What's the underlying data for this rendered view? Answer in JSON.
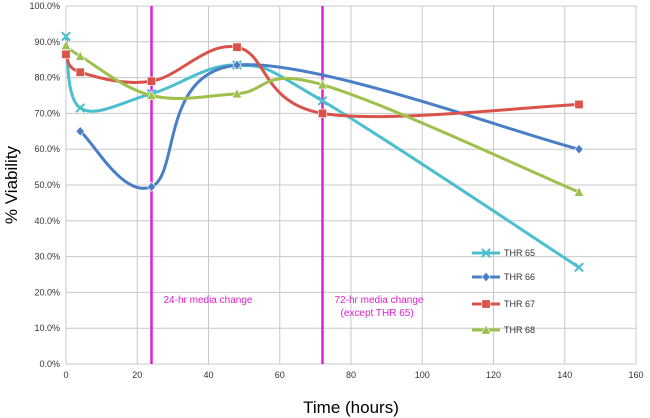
{
  "chart_data": {
    "type": "line",
    "xlabel": "Time (hours)",
    "ylabel": "% Viability",
    "xlim": [
      0,
      160
    ],
    "ylim": [
      0,
      100
    ],
    "x_ticks": [
      "0",
      "20",
      "40",
      "60",
      "80",
      "100",
      "120",
      "140",
      "160"
    ],
    "y_ticks": [
      "0.0%",
      "10.0%",
      "20.0%",
      "30.0%",
      "40.0%",
      "50.0%",
      "60.0%",
      "70.0%",
      "80.0%",
      "90.0%",
      "100.0%"
    ],
    "grid": true,
    "legend_position": "bottom-right",
    "series": [
      {
        "name": "THR 65",
        "color": "#4bbfcf",
        "marker": "x",
        "x": [
          0,
          4,
          24,
          48,
          72,
          144
        ],
        "values": [
          91.5,
          71.5,
          75.5,
          83.5,
          73.5,
          27.0
        ]
      },
      {
        "name": "THR 66",
        "color": "#4a7ec5",
        "marker": "diamond",
        "x": [
          4,
          24,
          48,
          144
        ],
        "values": [
          65.0,
          49.5,
          83.5,
          60.0
        ]
      },
      {
        "name": "THR 67",
        "color": "#d9534a",
        "marker": "square",
        "x": [
          0,
          4,
          24,
          48,
          72,
          144
        ],
        "values": [
          86.5,
          81.5,
          79.0,
          88.5,
          70.0,
          72.5
        ]
      },
      {
        "name": "THR 68",
        "color": "#9ec04d",
        "marker": "triangle",
        "x": [
          0,
          4,
          24,
          48,
          72,
          144
        ],
        "values": [
          89.0,
          86.0,
          75.0,
          75.5,
          78.0,
          48.0
        ]
      }
    ],
    "vlines": [
      {
        "x": 24,
        "color": "#e020d0",
        "label": [
          "24-hr media change"
        ]
      },
      {
        "x": 72,
        "color": "#e020d0",
        "label": [
          "72-hr media change",
          "(except THR 65)"
        ]
      }
    ]
  }
}
